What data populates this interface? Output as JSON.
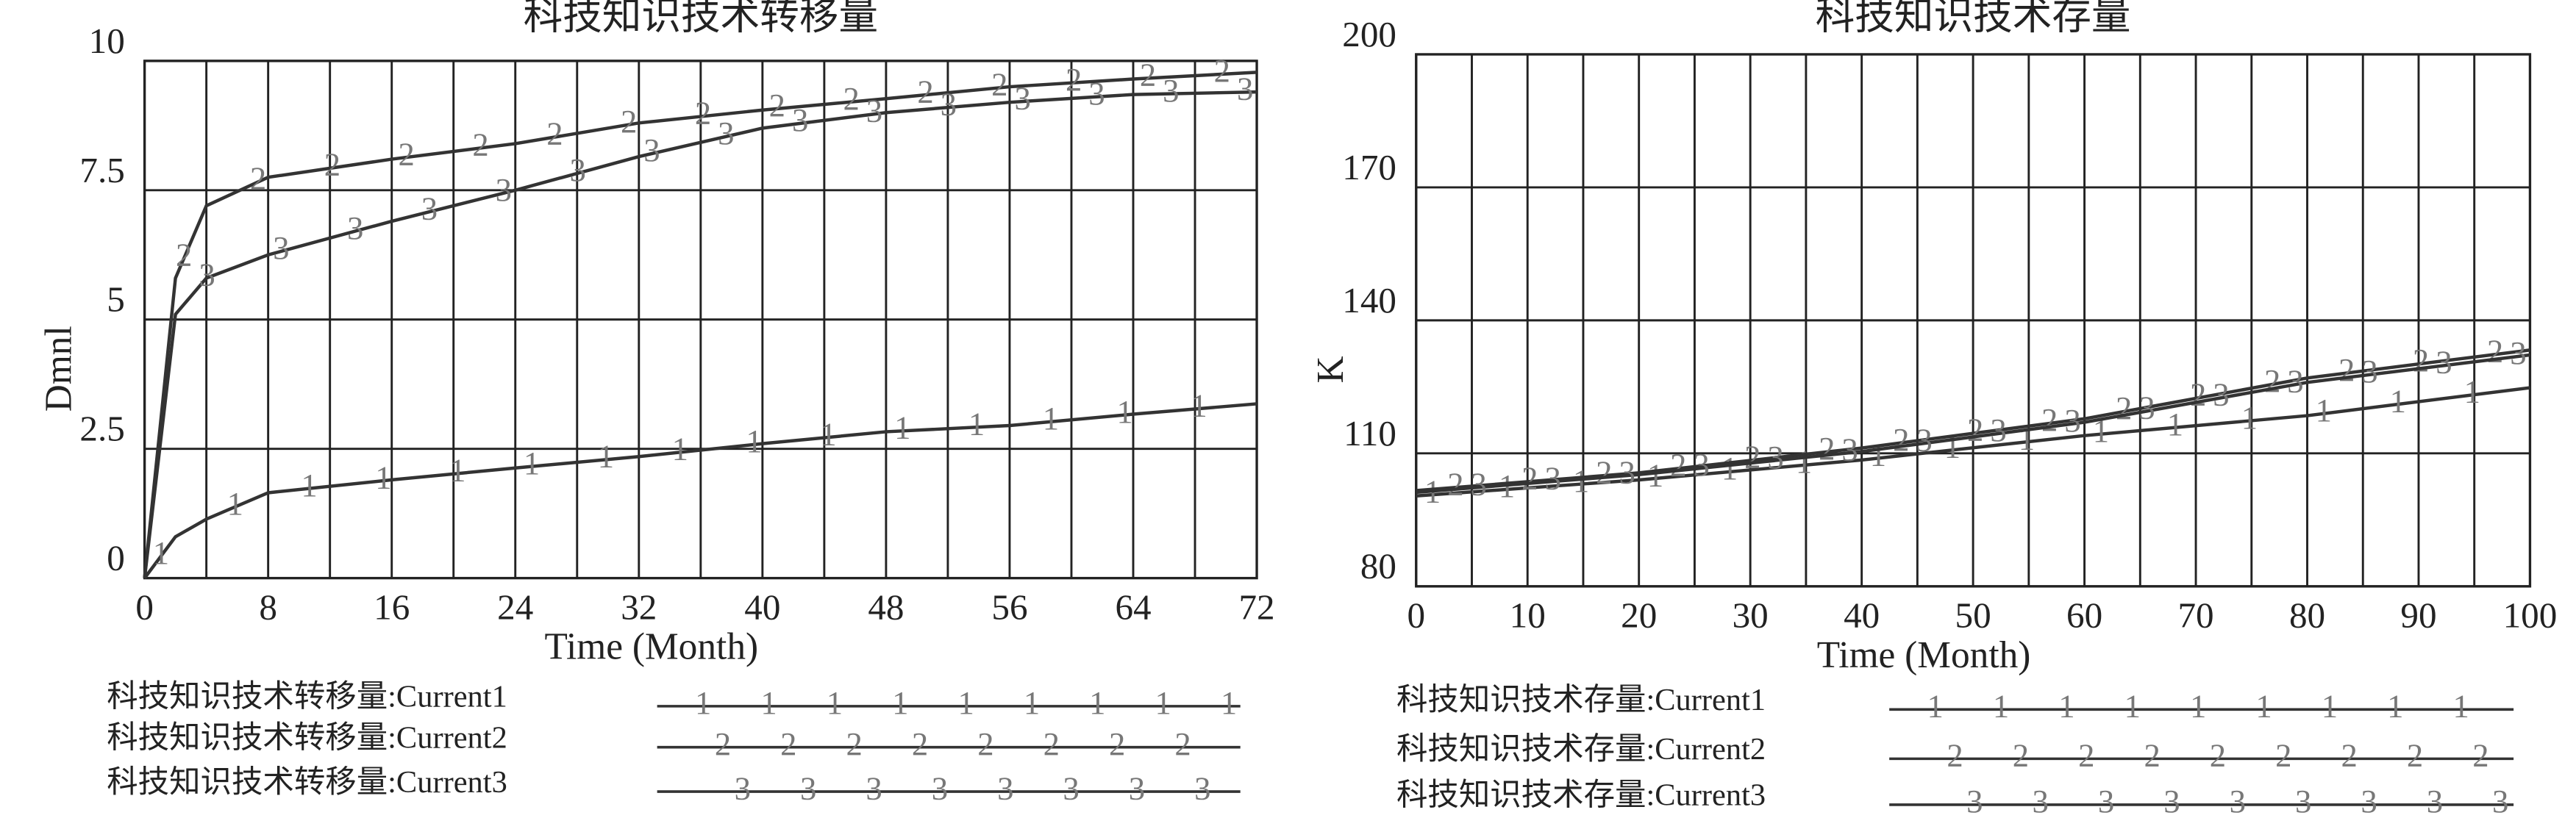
{
  "chart_data": [
    {
      "type": "line",
      "title": "科技知识技术转移量",
      "x_label": "Time (Month)",
      "y_label": "Dmnl",
      "x": [
        0,
        2,
        4,
        8,
        16,
        24,
        32,
        40,
        48,
        56,
        64,
        72
      ],
      "xlim": [
        0,
        72
      ],
      "xticks": [
        0,
        8,
        16,
        24,
        32,
        40,
        48,
        56,
        64,
        72
      ],
      "ylim": [
        0,
        10
      ],
      "yticks": [
        0,
        2.5,
        5,
        7.5,
        10
      ],
      "grid": true,
      "series": [
        {
          "name": "科技知识技术转移量:Current1",
          "marker": "1",
          "color": "#333333",
          "values": [
            0,
            0.8,
            1.14,
            1.65,
            1.9,
            2.13,
            2.35,
            2.6,
            2.83,
            2.95,
            3.17,
            3.37
          ]
        },
        {
          "name": "科技知识技术转移量:Current2",
          "marker": "2",
          "color": "#333333",
          "values": [
            0,
            5.8,
            7.2,
            7.75,
            8.1,
            8.4,
            8.8,
            9.05,
            9.27,
            9.5,
            9.65,
            9.78
          ]
        },
        {
          "name": "科技知识技术转移量:Current3",
          "marker": "3",
          "color": "#333333",
          "values": [
            0,
            5.1,
            5.8,
            6.25,
            6.9,
            7.5,
            8.15,
            8.7,
            9.0,
            9.2,
            9.35,
            9.4
          ]
        }
      ]
    },
    {
      "type": "line",
      "title": "科技知识技术存量",
      "x_label": "Time (Month)",
      "y_label": "K",
      "x": [
        0,
        20,
        40,
        60,
        80,
        100
      ],
      "xlim": [
        0,
        100
      ],
      "xticks": [
        0,
        10,
        20,
        30,
        40,
        50,
        60,
        70,
        80,
        90,
        100
      ],
      "ylim": [
        80,
        200
      ],
      "yticks": [
        80,
        110,
        140,
        170,
        200
      ],
      "grid": true,
      "series": [
        {
          "name": "科技知识技术存量:Current1",
          "marker": "1",
          "color": "#333333",
          "values": [
            100.4,
            104,
            108.5,
            114,
            118.5,
            124.8
          ]
        },
        {
          "name": "科技知识技术存量:Current2",
          "marker": "2",
          "color": "#333333",
          "values": [
            101.6,
            105.6,
            111.2,
            117.8,
            127,
            133.3
          ]
        },
        {
          "name": "科技知识技术存量:Current3",
          "marker": "3",
          "color": "#333333",
          "values": [
            101.2,
            105.2,
            110.4,
            117,
            126,
            132.2
          ]
        }
      ]
    }
  ]
}
